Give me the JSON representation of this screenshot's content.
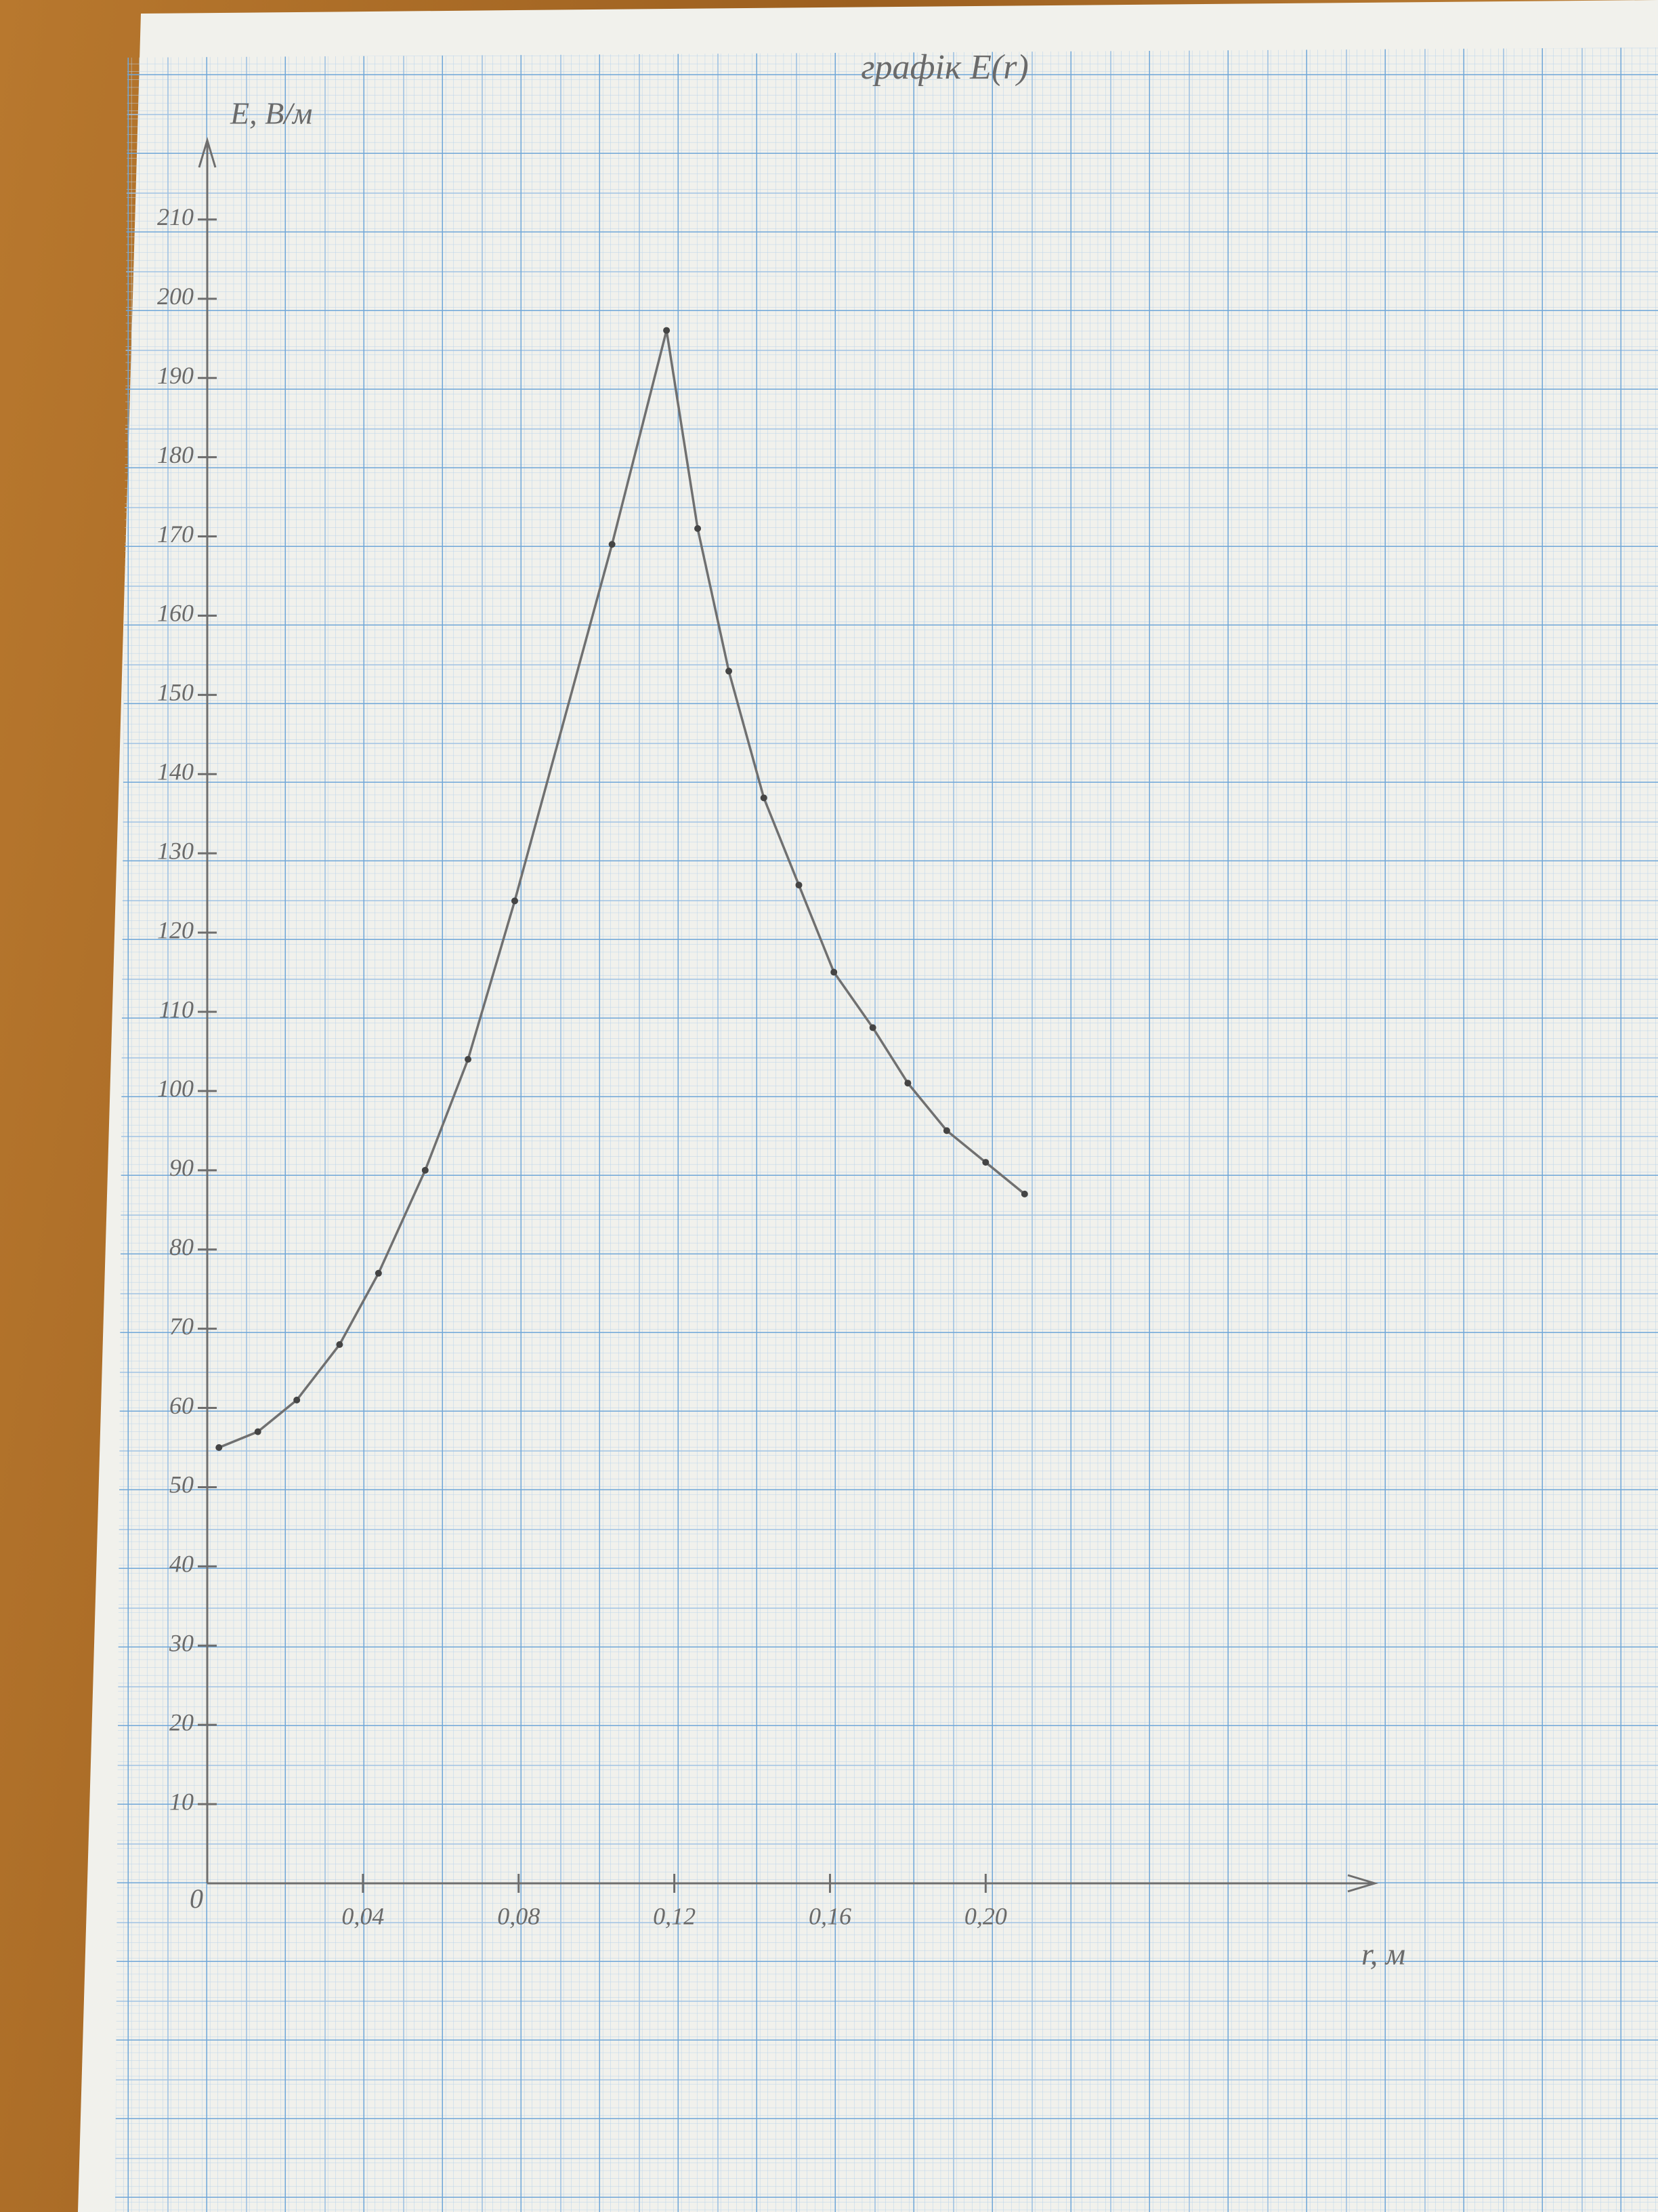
{
  "chart_data": {
    "type": "line",
    "title": "графік E(r)",
    "x_label": "r, м",
    "y_label": "E, В/м",
    "origin_label": "0",
    "x": [
      0.003,
      0.013,
      0.023,
      0.034,
      0.044,
      0.056,
      0.067,
      0.079,
      0.104,
      0.118,
      0.126,
      0.134,
      0.143,
      0.152,
      0.161,
      0.171,
      0.18,
      0.19,
      0.2,
      0.21
    ],
    "series": [
      {
        "color": "#707070",
        "values": [
          55,
          57,
          61,
          68,
          77,
          90,
          104,
          124,
          169,
          196,
          171,
          153,
          137,
          126,
          115,
          108,
          101,
          95,
          91,
          87
        ]
      }
    ],
    "xlim": [
      0,
      0.3
    ],
    "ylim": [
      0,
      220
    ],
    "xticks": [
      {
        "value": 0.04,
        "label": "0,04"
      },
      {
        "value": 0.08,
        "label": "0,08"
      },
      {
        "value": 0.12,
        "label": "0,12"
      },
      {
        "value": 0.16,
        "label": "0,16"
      },
      {
        "value": 0.2,
        "label": "0,20"
      }
    ],
    "yticks": [
      10,
      20,
      30,
      40,
      50,
      60,
      70,
      80,
      90,
      100,
      110,
      120,
      130,
      140,
      150,
      160,
      170,
      180,
      190,
      200,
      210
    ]
  }
}
